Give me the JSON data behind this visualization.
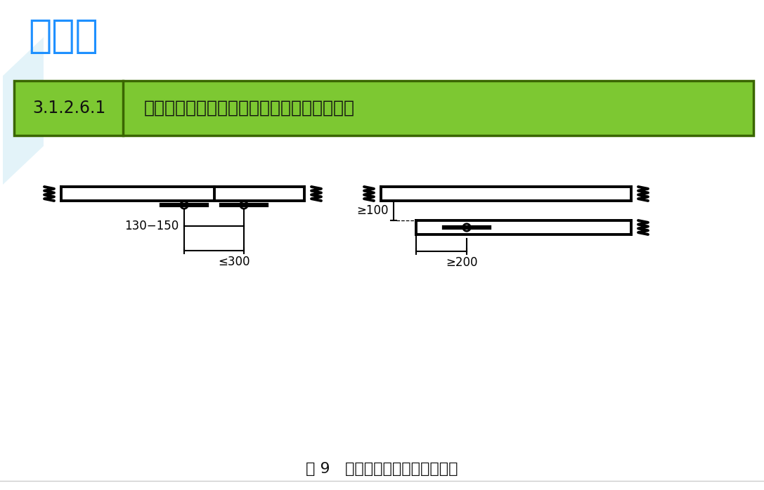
{
  "title": "脚手板",
  "title_color": "#1E90FF",
  "bg_color": "#FFFFFF",
  "table_bg": "#7DC832",
  "table_border_color": "#3a6600",
  "table_code": "3.1.2.6.1",
  "table_text": "第一层、顶层、作业层脚手板已铺满、铺稳。",
  "caption": "图 9   脚手板对接搭接布设示意图",
  "dim1_label": "130−150",
  "dim2_label": "≤300",
  "dim3_label": "≥100",
  "dim4_label": "≥200",
  "watermark_color": "#C8E8F4"
}
